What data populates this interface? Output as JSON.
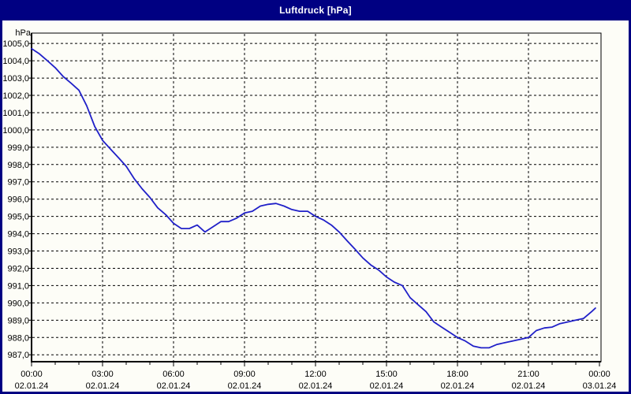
{
  "window": {
    "title": "Luftdruck [hPa]"
  },
  "colors": {
    "titlebar_bg": "#000082",
    "titlebar_text": "#ffffff",
    "frame_border": "#000082",
    "page_bg": "#fdfdf7",
    "line": "#2020c8",
    "grid": "#000000",
    "axis": "#000000",
    "label_text": "#000000"
  },
  "chart_data": {
    "type": "line",
    "title": "Luftdruck [hPa]",
    "unit_label": "hPa",
    "grid": "dashed",
    "legend": "none",
    "ylim": [
      986.6,
      1005.6
    ],
    "xlim_hours": [
      0,
      24.07
    ],
    "y_ticks": [
      {
        "v": 1005,
        "label": "1005,0"
      },
      {
        "v": 1004,
        "label": "1004,0"
      },
      {
        "v": 1003,
        "label": "1003,0"
      },
      {
        "v": 1002,
        "label": "1002,0"
      },
      {
        "v": 1001,
        "label": "1001,0"
      },
      {
        "v": 1000,
        "label": "1000,0"
      },
      {
        "v": 999,
        "label": "999,0"
      },
      {
        "v": 998,
        "label": "998,0"
      },
      {
        "v": 997,
        "label": "997,0"
      },
      {
        "v": 996,
        "label": "996,0"
      },
      {
        "v": 995,
        "label": "995,0"
      },
      {
        "v": 994,
        "label": "994,0"
      },
      {
        "v": 993,
        "label": "993,0"
      },
      {
        "v": 992,
        "label": "992,0"
      },
      {
        "v": 991,
        "label": "991,0"
      },
      {
        "v": 990,
        "label": "990,0"
      },
      {
        "v": 989,
        "label": "989,0"
      },
      {
        "v": 988,
        "label": "988,0"
      },
      {
        "v": 987,
        "label": "987,0"
      }
    ],
    "x_ticks": [
      {
        "hour": 0,
        "time": "00:00",
        "date": "02.01.24"
      },
      {
        "hour": 3,
        "time": "03:00",
        "date": "02.01.24"
      },
      {
        "hour": 6,
        "time": "06:00",
        "date": "02.01.24"
      },
      {
        "hour": 9,
        "time": "09:00",
        "date": "02.01.24"
      },
      {
        "hour": 12,
        "time": "12:00",
        "date": "02.01.24"
      },
      {
        "hour": 15,
        "time": "15:00",
        "date": "02.01.24"
      },
      {
        "hour": 18,
        "time": "18:00",
        "date": "02.01.24"
      },
      {
        "hour": 21,
        "time": "21:00",
        "date": "02.01.24"
      },
      {
        "hour": 24,
        "time": "00:00",
        "date": "03.01.24"
      }
    ],
    "x_minor_tick_every_hours": 1,
    "series": [
      {
        "name": "Luftdruck",
        "points": [
          [
            0,
            1004.7
          ],
          [
            0.33,
            1004.4
          ],
          [
            0.67,
            1004.0
          ],
          [
            1,
            1003.6
          ],
          [
            1.33,
            1003.1
          ],
          [
            1.67,
            1002.7
          ],
          [
            2,
            1002.3
          ],
          [
            2.33,
            1001.4
          ],
          [
            2.67,
            1000.2
          ],
          [
            3,
            999.4
          ],
          [
            3.33,
            998.9
          ],
          [
            3.67,
            998.4
          ],
          [
            4,
            997.9
          ],
          [
            4.33,
            997.2
          ],
          [
            4.67,
            996.6
          ],
          [
            5,
            996.1
          ],
          [
            5.33,
            995.5
          ],
          [
            5.67,
            995.1
          ],
          [
            6,
            994.6
          ],
          [
            6.33,
            994.3
          ],
          [
            6.67,
            994.3
          ],
          [
            7,
            994.5
          ],
          [
            7.33,
            994.1
          ],
          [
            7.67,
            994.4
          ],
          [
            8,
            994.7
          ],
          [
            8.33,
            994.7
          ],
          [
            8.67,
            994.9
          ],
          [
            9,
            995.2
          ],
          [
            9.33,
            995.3
          ],
          [
            9.67,
            995.6
          ],
          [
            10,
            995.7
          ],
          [
            10.33,
            995.75
          ],
          [
            10.67,
            995.6
          ],
          [
            11,
            995.4
          ],
          [
            11.33,
            995.3
          ],
          [
            11.67,
            995.3
          ],
          [
            12,
            995.0
          ],
          [
            12.33,
            994.8
          ],
          [
            12.67,
            994.5
          ],
          [
            13,
            994.1
          ],
          [
            13.33,
            993.6
          ],
          [
            13.67,
            993.1
          ],
          [
            14,
            992.6
          ],
          [
            14.33,
            992.2
          ],
          [
            14.67,
            991.9
          ],
          [
            15,
            991.5
          ],
          [
            15.33,
            991.2
          ],
          [
            15.67,
            991.0
          ],
          [
            16,
            990.3
          ],
          [
            16.33,
            989.9
          ],
          [
            16.67,
            989.5
          ],
          [
            17,
            988.9
          ],
          [
            17.33,
            988.6
          ],
          [
            17.67,
            988.3
          ],
          [
            18,
            988.0
          ],
          [
            18.33,
            987.8
          ],
          [
            18.67,
            987.5
          ],
          [
            19,
            987.4
          ],
          [
            19.33,
            987.4
          ],
          [
            19.67,
            987.6
          ],
          [
            20,
            987.7
          ],
          [
            20.33,
            987.8
          ],
          [
            20.67,
            987.9
          ],
          [
            21,
            988.0
          ],
          [
            21.33,
            988.4
          ],
          [
            21.67,
            988.55
          ],
          [
            22,
            988.6
          ],
          [
            22.33,
            988.8
          ],
          [
            22.67,
            988.9
          ],
          [
            23,
            989.0
          ],
          [
            23.33,
            989.1
          ],
          [
            23.67,
            989.5
          ],
          [
            23.83,
            989.7
          ]
        ]
      }
    ]
  }
}
